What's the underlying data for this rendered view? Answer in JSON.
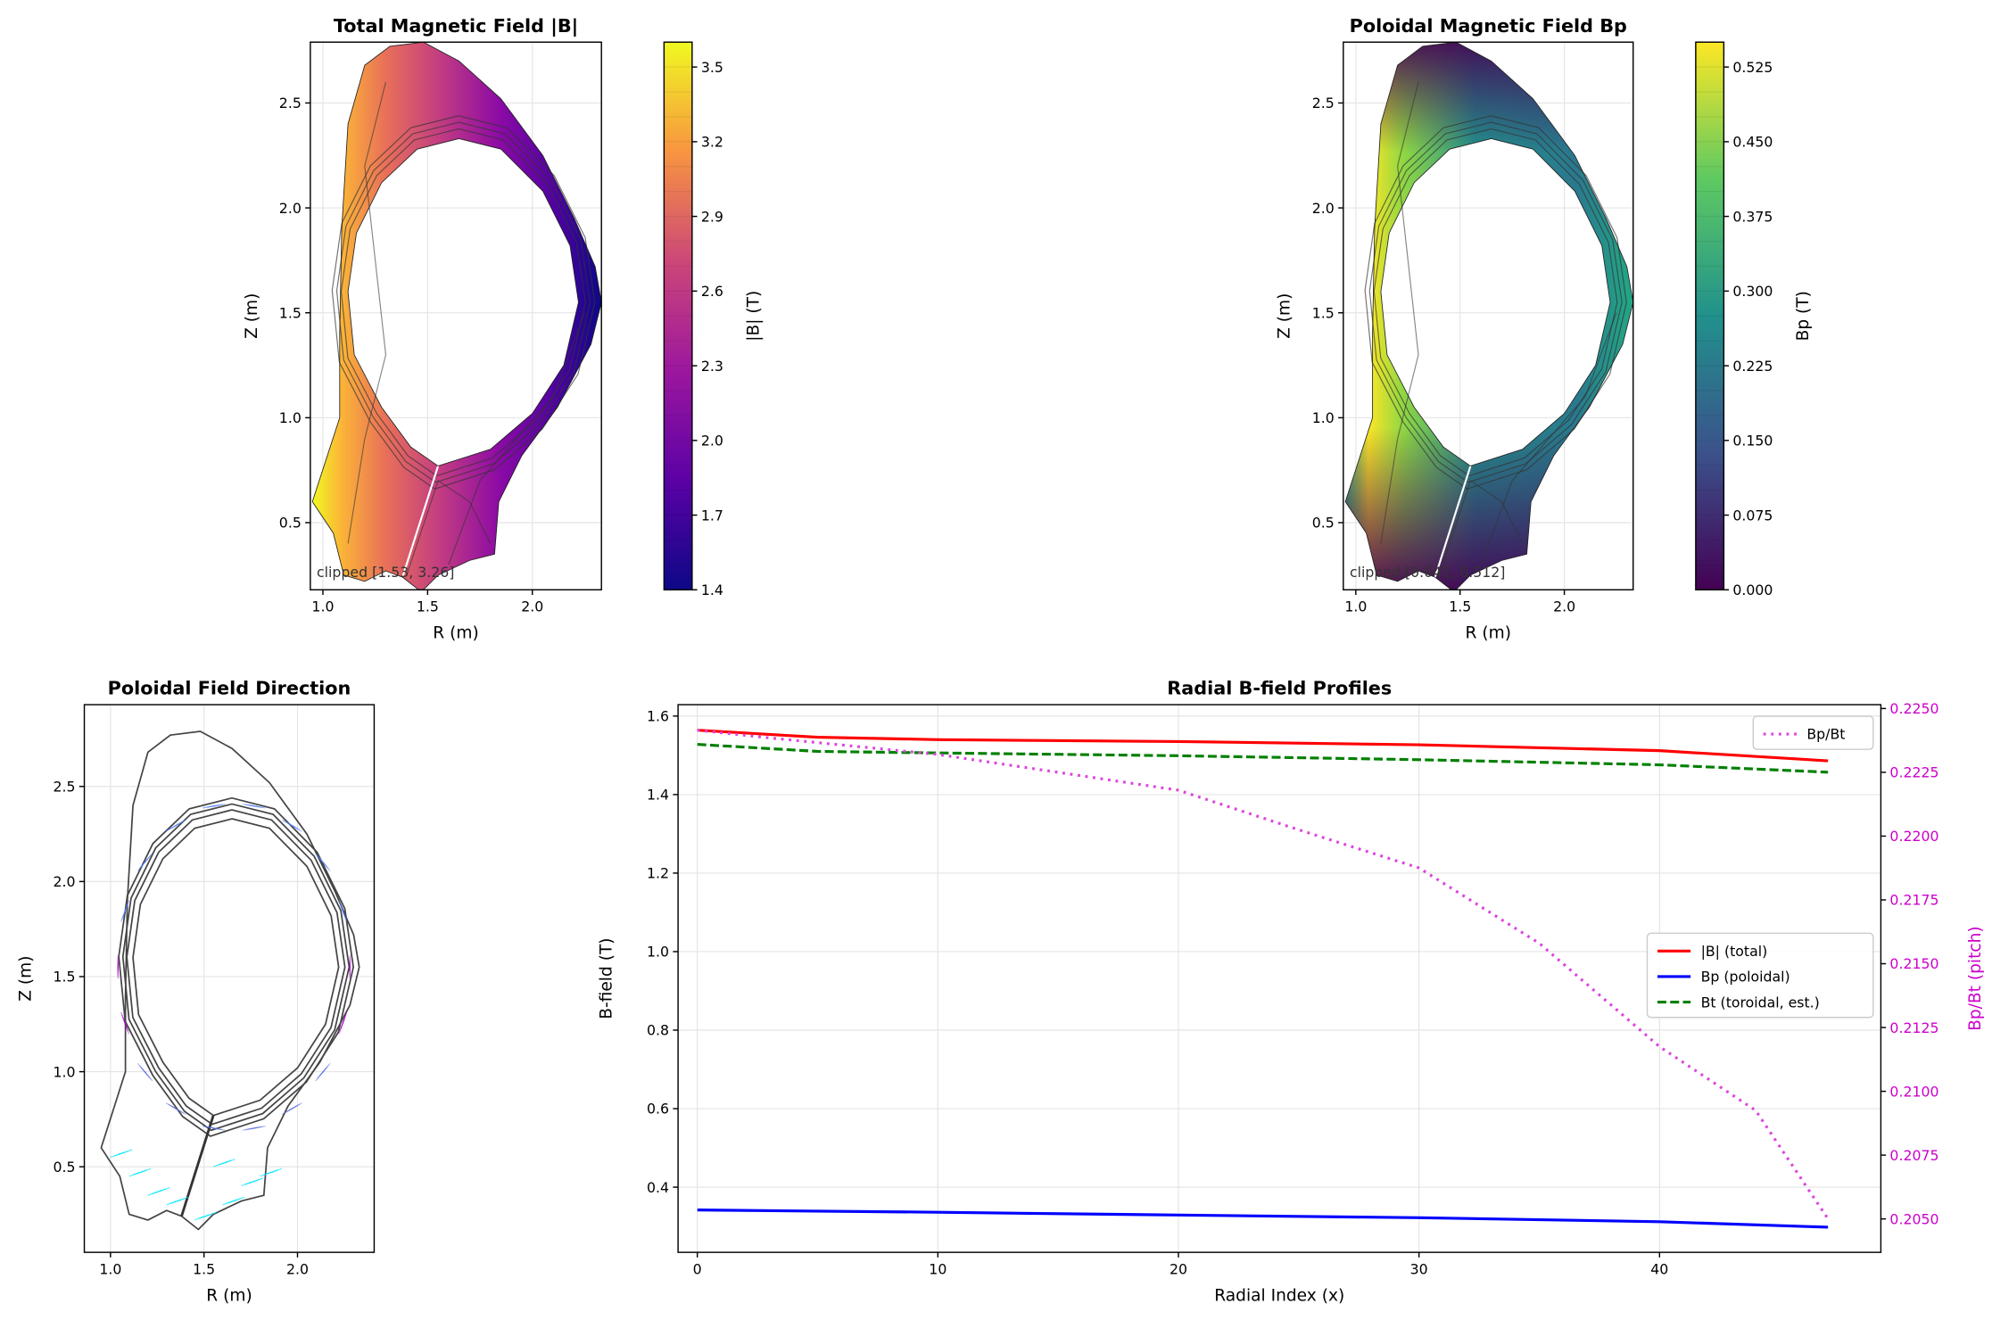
{
  "chart_data": [
    {
      "type": "heatmap",
      "title": "Total Magnetic Field |B|",
      "xlabel": "R (m)",
      "ylabel": "Z (m)",
      "xlim": [
        0.94,
        2.33
      ],
      "ylim": [
        0.18,
        2.79
      ],
      "xticks": [
        1.0,
        1.5,
        2.0
      ],
      "yticks": [
        0.5,
        1.0,
        1.5,
        2.0,
        2.5
      ],
      "colormap": "plasma",
      "colorbar": {
        "label": "|B| (T)",
        "range": [
          1.4,
          3.6
        ],
        "ticks": [
          "1.4",
          "1.7",
          "2.0",
          "2.3",
          "2.6",
          "2.9",
          "3.2",
          "3.5"
        ]
      },
      "annotation": "clipped [1.53, 3.26]",
      "grid": true
    },
    {
      "type": "heatmap",
      "title": "Poloidal Magnetic Field Bp",
      "xlabel": "R (m)",
      "ylabel": "Z (m)",
      "xlim": [
        0.94,
        2.33
      ],
      "ylim": [
        0.18,
        2.79
      ],
      "xticks": [
        1.0,
        1.5,
        2.0
      ],
      "yticks": [
        0.5,
        1.0,
        1.5,
        2.0,
        2.5
      ],
      "colormap": "viridis",
      "colorbar": {
        "label": "Bp (T)",
        "range": [
          0,
          0.55
        ],
        "ticks": [
          "0.000",
          "0.075",
          "0.150",
          "0.225",
          "0.300",
          "0.375",
          "0.450",
          "0.525"
        ]
      },
      "annotation": "clipped [0.041, 0.512]",
      "grid": true
    },
    {
      "type": "scatter",
      "title": "Poloidal Field Direction",
      "xlabel": "R (m)",
      "ylabel": "Z (m)",
      "xlim": [
        0.86,
        2.41
      ],
      "ylim": [
        0.05,
        2.93
      ],
      "xticks": [
        1.0,
        1.5,
        2.0
      ],
      "yticks": [
        0.5,
        1.0,
        1.5,
        2.0,
        2.5
      ],
      "grid": true
    },
    {
      "type": "line",
      "title": "Radial B-field Profiles",
      "xlabel": "Radial Index (x)",
      "ylabel": "B-field (T)",
      "y2label": "Bp/Bt (pitch)",
      "xlim": [
        -0.8,
        49.2
      ],
      "ylim": [
        0.234,
        1.629
      ],
      "y2lim": [
        0.20369,
        0.22515
      ],
      "xticks": [
        0,
        10,
        20,
        30,
        40
      ],
      "yticks": [
        0.4,
        0.6,
        0.8,
        1.0,
        1.2,
        1.4,
        1.6
      ],
      "y2ticks": [
        0.205,
        0.2075,
        0.21,
        0.2125,
        0.215,
        0.2175,
        0.22,
        0.2225,
        0.225
      ],
      "grid": true,
      "series": [
        {
          "name": "|B| (total)",
          "color": "#ff0000",
          "style": "solid",
          "axis": "left",
          "x": [
            0,
            5,
            10,
            20,
            30,
            40,
            47
          ],
          "values": [
            1.564,
            1.546,
            1.54,
            1.535,
            1.527,
            1.512,
            1.486
          ]
        },
        {
          "name": "Bp (poloidal)",
          "color": "#0000ff",
          "style": "solid",
          "axis": "left",
          "x": [
            0,
            10,
            20,
            30,
            40,
            47
          ],
          "values": [
            0.342,
            0.336,
            0.329,
            0.322,
            0.312,
            0.298
          ]
        },
        {
          "name": "Bt (toroidal, est.)",
          "color": "#008000",
          "style": "dashed",
          "axis": "left",
          "x": [
            0,
            5,
            10,
            20,
            30,
            40,
            47
          ],
          "values": [
            1.528,
            1.51,
            1.506,
            1.499,
            1.489,
            1.476,
            1.457
          ]
        },
        {
          "name": "Bp/Bt",
          "color": "#dd44dd",
          "style": "dotted",
          "axis": "right",
          "x": [
            0,
            3,
            10,
            20,
            25,
            30,
            35,
            40,
            44,
            47
          ],
          "values": [
            0.22415,
            0.22385,
            0.2232,
            0.2218,
            0.22025,
            0.21875,
            0.2158,
            0.21175,
            0.20925,
            0.205
          ]
        }
      ],
      "legend_right": {
        "placement": "upper right",
        "entries": [
          "Bp/Bt"
        ]
      },
      "legend_left": {
        "placement": "center right",
        "entries": [
          "|B| (total)",
          "Bp (poloidal)",
          "Bt (toroidal, est.)"
        ]
      }
    }
  ]
}
